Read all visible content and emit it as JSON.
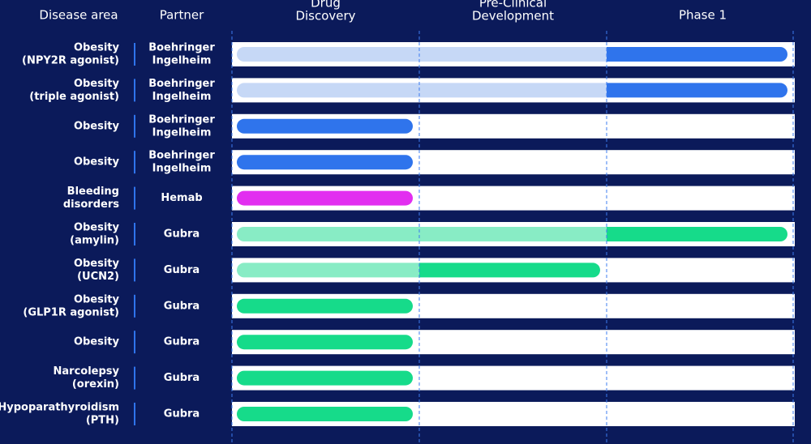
{
  "header": {
    "disease_area": "Disease area",
    "partner": "Partner",
    "phases": [
      [
        "Drug",
        "Discovery"
      ],
      [
        "Pre-Clinical",
        "Development"
      ],
      [
        "Phase 1"
      ]
    ]
  },
  "rows": [
    {
      "disease": [
        "Obesity",
        "(NPY2R agonist)"
      ],
      "partner": [
        "Boehringer",
        "Ingelheim"
      ],
      "progress": 3,
      "color": "#2f74ec",
      "light_color": "#c6d8f6"
    },
    {
      "disease": [
        "Obesity",
        "(triple agonist)"
      ],
      "partner": [
        "Boehringer",
        "Ingelheim"
      ],
      "progress": 3,
      "color": "#2f74ec",
      "light_color": "#c6d8f6"
    },
    {
      "disease": [
        "Obesity"
      ],
      "partner": [
        "Boehringer",
        "Ingelheim"
      ],
      "progress": 1,
      "color": "#2f74ec",
      "light_color": "#c6d8f6"
    },
    {
      "disease": [
        "Obesity"
      ],
      "partner": [
        "Boehringer",
        "Ingelheim"
      ],
      "progress": 1,
      "color": "#2f74ec",
      "light_color": "#c6d8f6"
    },
    {
      "disease": [
        "Bleeding",
        "disorders"
      ],
      "partner": [
        "Hemab"
      ],
      "progress": 1,
      "color": "#e22ef0",
      "light_color": "#f2b5f8"
    },
    {
      "disease": [
        "Obesity",
        "(amylin)"
      ],
      "partner": [
        "Gubra"
      ],
      "progress": 3,
      "color": "#16db8a",
      "light_color": "#88ecc5"
    },
    {
      "disease": [
        "Obesity",
        "(UCN2)"
      ],
      "partner": [
        "Gubra"
      ],
      "progress": 2,
      "color": "#16db8a",
      "light_color": "#88ecc5"
    },
    {
      "disease": [
        "Obesity",
        "(GLP1R agonist)"
      ],
      "partner": [
        "Gubra"
      ],
      "progress": 1,
      "color": "#16db8a",
      "light_color": "#88ecc5"
    },
    {
      "disease": [
        "Obesity"
      ],
      "partner": [
        "Gubra"
      ],
      "progress": 1,
      "color": "#16db8a",
      "light_color": "#88ecc5"
    },
    {
      "disease": [
        "Narcolepsy",
        "(orexin)"
      ],
      "partner": [
        "Gubra"
      ],
      "progress": 1,
      "color": "#16db8a",
      "light_color": "#88ecc5"
    },
    {
      "disease": [
        "Hypoparathyroidism",
        "(PTH)"
      ],
      "partner": [
        "Gubra"
      ],
      "progress": 1,
      "color": "#16db8a",
      "light_color": "#88ecc5"
    }
  ]
}
